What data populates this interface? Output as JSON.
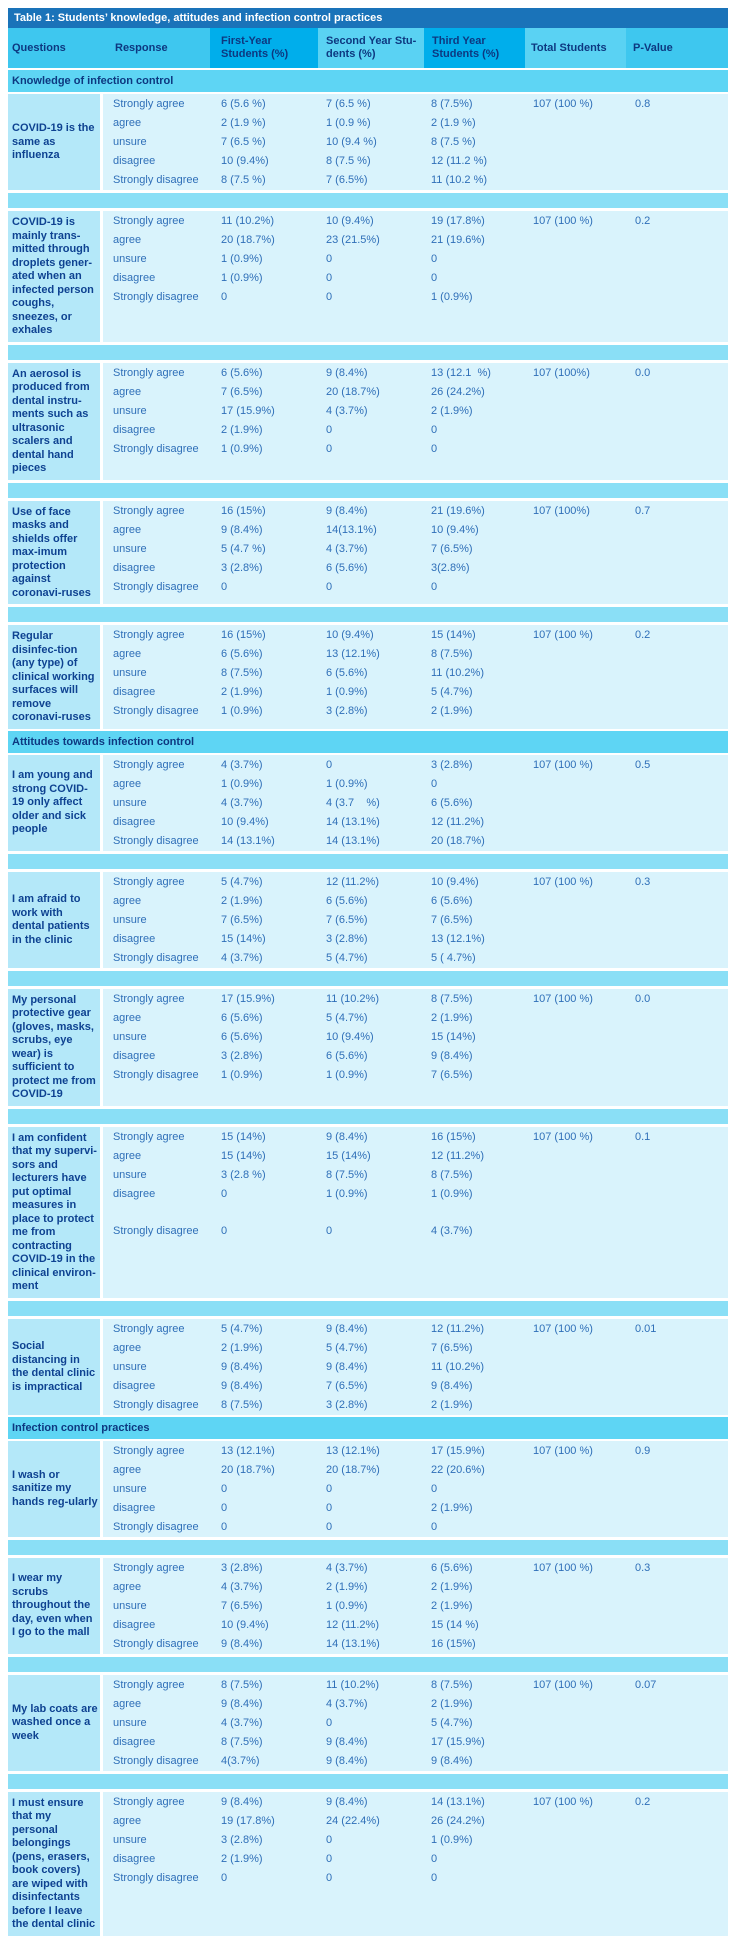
{
  "title": "Table 1: Students’ knowledge, attitudes and infection control practices",
  "palette": {
    "title_bar": "#1a73b9",
    "header_dark_cell": "#00aeeb",
    "header_light_cell": "#5ad2f3",
    "header_mid_cell": "#3ec7ef",
    "section_row": "#5ed5f4",
    "spacer_row": "#8adff6",
    "question_cell": "#b4e8f9",
    "data_row": "#d9f3fc",
    "header_text": "#0d3880",
    "body_text": "#2f6fb8",
    "title_text": "#ffffff"
  },
  "columns": [
    {
      "label": "Questions",
      "key": "q",
      "shade": "mid"
    },
    {
      "label": "Response",
      "key": "resp",
      "shade": "mid"
    },
    {
      "label": "First-Year\nStudents (%)",
      "key": "fy",
      "shade": "dark"
    },
    {
      "label": "Second Year Stu-\ndents (%)",
      "key": "sy",
      "shade": "light"
    },
    {
      "label": "Third Year\n Students (%)",
      "key": "ty",
      "shade": "dark"
    },
    {
      "label": "Total Students",
      "key": "total",
      "shade": "light"
    },
    {
      "label": "P-Value",
      "key": "p",
      "shade": "mid"
    }
  ],
  "sections": [
    {
      "label": "Knowledge of infection control",
      "questions": [
        {
          "question": "COVID-19 is the same as influenza",
          "total": "107 (100 %)",
          "p": "0.8",
          "rows": [
            {
              "response": "Strongly agree",
              "first": "6 (5.6 %)",
              "second": "7 (6.5 %)",
              "third": "8 (7.5%)"
            },
            {
              "response": "agree",
              "first": "2 (1.9 %)",
              "second": "1 (0.9 %)",
              "third": "2 (1.9 %)"
            },
            {
              "response": "unsure",
              "first": "7 (6.5 %)",
              "second": "10 (9.4 %)",
              "third": "8 (7.5 %)"
            },
            {
              "response": "disagree",
              "first": "10 (9.4%)",
              "second": "8 (7.5 %)",
              "third": "12 (11.2 %)"
            },
            {
              "response": "Strongly disagree",
              "first": "8 (7.5 %)",
              "second": "7 (6.5%)",
              "third": "11 (10.2 %)"
            }
          ]
        },
        {
          "question": "COVID-19 is mainly trans-mitted through droplets gener-ated when an infected person coughs, sneezes, or exhales",
          "total": "107 (100 %)",
          "p": "0.2",
          "rows": [
            {
              "response": "Strongly agree",
              "first": "11 (10.2%)",
              "second": "10 (9.4%)",
              "third": "19 (17.8%)"
            },
            {
              "response": "agree",
              "first": "20 (18.7%)",
              "second": "23 (21.5%)",
              "third": "21 (19.6%)"
            },
            {
              "response": "unsure",
              "first": "1 (0.9%)",
              "second": "0",
              "third": "0"
            },
            {
              "response": "disagree",
              "first": "1 (0.9%)",
              "second": "0",
              "third": "0"
            },
            {
              "response": "Strongly disagree",
              "first": "0",
              "second": "0",
              "third": "1 (0.9%)"
            }
          ]
        },
        {
          "question": "An aerosol is produced from dental instru-ments such as ultrasonic scalers and dental hand pieces",
          "total": "107 (100%)",
          "p": "0.0",
          "rows": [
            {
              "response": "Strongly agree",
              "first": "6 (5.6%)",
              "second": "9 (8.4%)",
              "third": "13 (12.1  %)"
            },
            {
              "response": "agree",
              "first": "7 (6.5%)",
              "second": "20 (18.7%)",
              "third": "26 (24.2%)"
            },
            {
              "response": "unsure",
              "first": "17 (15.9%)",
              "second": "4 (3.7%)",
              "third": "2 (1.9%)"
            },
            {
              "response": "disagree",
              "first": "2 (1.9%)",
              "second": "0",
              "third": "0"
            },
            {
              "response": "Strongly disagree",
              "first": "1 (0.9%)",
              "second": "0",
              "third": "0"
            }
          ]
        },
        {
          "question": "Use of face masks and shields offer max-imum protection against coronavi-ruses",
          "total": "107 (100%)",
          "p": "0.7",
          "rows": [
            {
              "response": "Strongly agree",
              "first": "16 (15%)",
              "second": "9 (8.4%)",
              "third": "21 (19.6%)"
            },
            {
              "response": "agree",
              "first": "9 (8.4%)",
              "second": "14(13.1%)",
              "third": "10 (9.4%)"
            },
            {
              "response": "unsure",
              "first": "5 (4.7 %)",
              "second": "4 (3.7%)",
              "third": "7 (6.5%)"
            },
            {
              "response": "disagree",
              "first": "3 (2.8%)",
              "second": "6 (5.6%)",
              "third": "3(2.8%)"
            },
            {
              "response": "Strongly disagree",
              "first": "0",
              "second": "0",
              "third": "0"
            }
          ]
        },
        {
          "question": "Regular disinfec-tion (any type) of clinical working surfaces will remove coronavi-ruses",
          "total": "107 (100 %)",
          "p": "0.2",
          "rows": [
            {
              "response": "Strongly agree",
              "first": "16 (15%)",
              "second": "10 (9.4%)",
              "third": "15 (14%)"
            },
            {
              "response": "agree",
              "first": "6 (5.6%)",
              "second": "13 (12.1%)",
              "third": "8 (7.5%)"
            },
            {
              "response": "unsure",
              "first": "8 (7.5%)",
              "second": "6 (5.6%)",
              "third": "11 (10.2%)"
            },
            {
              "response": "disagree",
              "first": "2 (1.9%)",
              "second": "1 (0.9%)",
              "third": "5 (4.7%)"
            },
            {
              "response": "Strongly disagree",
              "first": "1 (0.9%)",
              "second": "3 (2.8%)",
              "third": "2 (1.9%)"
            }
          ]
        }
      ]
    },
    {
      "label": "Attitudes towards infection control",
      "questions": [
        {
          "question": "I am young and strong  COVID-19 only affect older and sick people",
          "total": "107 (100 %)",
          "p": "0.5",
          "rows": [
            {
              "response": "Strongly agree",
              "first": "4 (3.7%)",
              "second": "0",
              "third": "3 (2.8%)"
            },
            {
              "response": "agree",
              "first": "1 (0.9%)",
              "second": "1 (0.9%)",
              "third": "0"
            },
            {
              "response": "unsure",
              "first": "4 (3.7%)",
              "second": "4 (3.7    %)",
              "third": "6 (5.6%)"
            },
            {
              "response": "disagree",
              "first": "10 (9.4%)",
              "second": "14 (13.1%)",
              "third": "12 (11.2%)"
            },
            {
              "response": "Strongly disagree",
              "first": "14 (13.1%)",
              "second": "14 (13.1%)",
              "third": "20 (18.7%)"
            }
          ]
        },
        {
          "question": "I am afraid to work with dental patients in the clinic",
          "total": "107 (100 %)",
          "p": "0.3",
          "rows": [
            {
              "response": "Strongly agree",
              "first": "5 (4.7%)",
              "second": "12 (11.2%)",
              "third": "10 (9.4%)"
            },
            {
              "response": "agree",
              "first": "2 (1.9%)",
              "second": "6 (5.6%)",
              "third": "6 (5.6%)"
            },
            {
              "response": "unsure",
              "first": "7 (6.5%)",
              "second": "7 (6.5%)",
              "third": "7 (6.5%)"
            },
            {
              "response": "disagree",
              "first": "15 (14%)",
              "second": "3 (2.8%)",
              "third": "13 (12.1%)"
            },
            {
              "response": "Strongly disagree",
              "first": "4 (3.7%)",
              "second": "5 (4.7%)",
              "third": "5 ( 4.7%)"
            }
          ]
        },
        {
          "question": "My personal protective gear (gloves, masks, scrubs, eye wear) is sufficient to protect me from COVID-19",
          "total": "107 (100 %)",
          "p": "0.0",
          "rows": [
            {
              "response": "Strongly agree",
              "first": "17 (15.9%)",
              "second": "11 (10.2%)",
              "third": "8 (7.5%)"
            },
            {
              "response": "agree",
              "first": "6 (5.6%)",
              "second": "5 (4.7%)",
              "third": "2 (1.9%)"
            },
            {
              "response": "unsure",
              "first": "6 (5.6%)",
              "second": "10 (9.4%)",
              "third": "15 (14%)"
            },
            {
              "response": "disagree",
              "first": "3 (2.8%)",
              "second": "6 (5.6%)",
              "third": "9 (8.4%)"
            },
            {
              "response": "Strongly disagree",
              "first": "1 (0.9%)",
              "second": "1 (0.9%)",
              "third": "7 (6.5%)"
            }
          ]
        },
        {
          "question": "I am confident that my supervi-sors and lecturers have put optimal measures in place to protect me from contracting COVID-19 in the clinical environ-ment",
          "total": "107 (100 %)",
          "p": "0.1",
          "tall_gap": true,
          "rows": [
            {
              "response": "Strongly agree",
              "first": "15 (14%)",
              "second": "9 (8.4%)",
              "third": "16 (15%)"
            },
            {
              "response": "agree",
              "first": "15 (14%)",
              "second": "15 (14%)",
              "third": "12 (11.2%)"
            },
            {
              "response": "unsure",
              "first": "3 (2.8 %)",
              "second": "8 (7.5%)",
              "third": "8 (7.5%)"
            },
            {
              "response": "disagree",
              "first": "0",
              "second": "1 (0.9%)",
              "third": "1 (0.9%)"
            },
            {
              "response": "Strongly disagree",
              "first": "0",
              "second": "0",
              "third": "4 (3.7%)"
            }
          ]
        },
        {
          "question": "Social distancing in the dental clinic is impractical",
          "total": "107 (100 %)",
          "p": "0.01",
          "rows": [
            {
              "response": "Strongly agree",
              "first": "5 (4.7%)",
              "second": "9 (8.4%)",
              "third": "12 (11.2%)"
            },
            {
              "response": "agree",
              "first": "2 (1.9%)",
              "second": "5 (4.7%)",
              "third": "7 (6.5%)"
            },
            {
              "response": "unsure",
              "first": "9 (8.4%)",
              "second": "9 (8.4%)",
              "third": "11 (10.2%)"
            },
            {
              "response": "disagree",
              "first": "9 (8.4%)",
              "second": "7 (6.5%)",
              "third": "9 (8.4%)"
            },
            {
              "response": "Strongly disagree",
              "first": "8 (7.5%)",
              "second": "3 (2.8%)",
              "third": "2 (1.9%)"
            }
          ]
        }
      ]
    },
    {
      "label": "Infection control practices",
      "questions": [
        {
          "question": "I wash or sanitize my hands reg-ularly",
          "total": "107 (100 %)",
          "p": "0.9",
          "rows": [
            {
              "response": "Strongly agree",
              "first": "13 (12.1%)",
              "second": "13 (12.1%)",
              "third": "17 (15.9%)"
            },
            {
              "response": "agree",
              "first": "20 (18.7%)",
              "second": "20 (18.7%)",
              "third": "22 (20.6%)"
            },
            {
              "response": "unsure",
              "first": "0",
              "second": "0",
              "third": "0"
            },
            {
              "response": "disagree",
              "first": "0",
              "second": "0",
              "third": "2 (1.9%)"
            },
            {
              "response": "Strongly disagree",
              "first": "0",
              "second": "0",
              "third": "0"
            }
          ]
        },
        {
          "question": "I wear my scrubs throughout the day, even when I go to  the mall",
          "total": "107 (100 %)",
          "p": "0.3",
          "rows": [
            {
              "response": "Strongly agree",
              "first": "3 (2.8%)",
              "second": "4 (3.7%)",
              "third": "6 (5.6%)"
            },
            {
              "response": "agree",
              "first": "4 (3.7%)",
              "second": "2 (1.9%)",
              "third": "2 (1.9%)"
            },
            {
              "response": "unsure",
              "first": "7 (6.5%)",
              "second": "1 (0.9%)",
              "third": "2 (1.9%)"
            },
            {
              "response": "disagree",
              "first": "10 (9.4%)",
              "second": "12 (11.2%)",
              "third": "15 (14 %)"
            },
            {
              "response": "Strongly disagree",
              "first": "9 (8.4%)",
              "second": "14 (13.1%)",
              "third": "16 (15%)"
            }
          ]
        },
        {
          "question": "My lab coats are washed once a week",
          "total": "107 (100 %)",
          "p": "0.07",
          "rows": [
            {
              "response": "Strongly agree",
              "first": "8 (7.5%)",
              "second": "11 (10.2%)",
              "third": "8 (7.5%)"
            },
            {
              "response": "agree",
              "first": "9 (8.4%)",
              "second": "4 (3.7%)",
              "third": "2 (1.9%)"
            },
            {
              "response": "unsure",
              "first": "4 (3.7%)",
              "second": "0",
              "third": "5 (4.7%)"
            },
            {
              "response": "disagree",
              "first": "8 (7.5%)",
              "second": "9 (8.4%)",
              "third": "17 (15.9%)"
            },
            {
              "response": "Strongly disagree",
              "first": "4(3.7%)",
              "second": "9 (8.4%)",
              "third": "9 (8.4%)"
            }
          ]
        },
        {
          "question": "I must ensure that my personal belongings (pens, erasers, book covers) are wiped with disinfectants before I leave the dental clinic",
          "total": "107 (100 %)",
          "p": "0.2",
          "rows": [
            {
              "response": "Strongly agree",
              "first": "9 (8.4%)",
              "second": "9 (8.4%)",
              "third": "14 (13.1%)"
            },
            {
              "response": "agree",
              "first": "19 (17.8%)",
              "second": "24 (22.4%)",
              "third": "26 (24.2%)"
            },
            {
              "response": "unsure",
              "first": "3 (2.8%)",
              "second": "0",
              "third": "1 (0.9%)"
            },
            {
              "response": "disagree",
              "first": "2 (1.9%)",
              "second": "0",
              "third": "0"
            },
            {
              "response": "Strongly disagree",
              "first": "0",
              "second": "0",
              "third": "0"
            }
          ]
        }
      ]
    }
  ]
}
